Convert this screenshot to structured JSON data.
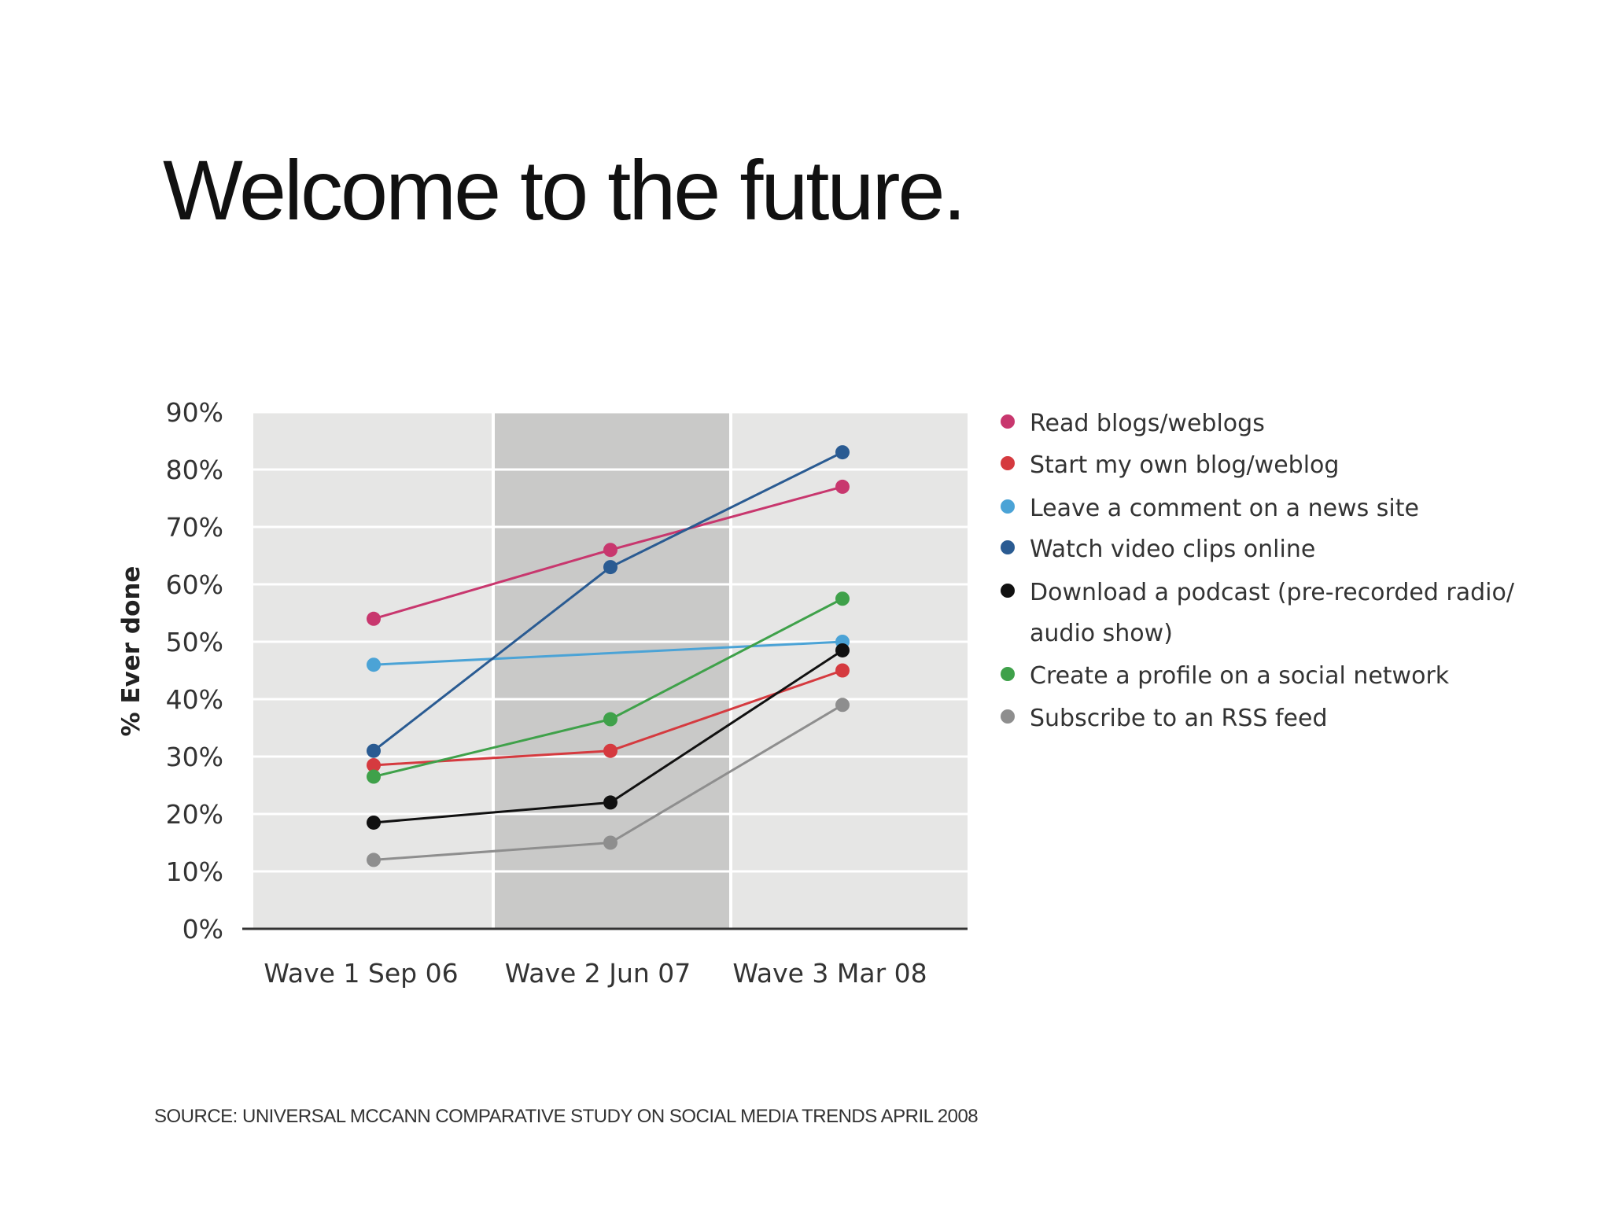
{
  "slide": {
    "title": "Welcome to the future.",
    "source": "SOURCE: UNIVERSAL MCCANN COMPARATIVE STUDY ON SOCIAL MEDIA TRENDS APRIL 2008"
  },
  "chart_data": {
    "type": "line",
    "title": "",
    "xlabel": "",
    "ylabel": "% Ever done",
    "categories": [
      "Wave 1 Sep 06",
      "Wave 2 Jun 07",
      "Wave 3 Mar 08"
    ],
    "ylim": [
      0,
      90
    ],
    "yticks": [
      "0%",
      "10%",
      "20%",
      "30%",
      "40%",
      "50%",
      "60%",
      "70%",
      "80%",
      "90%"
    ],
    "grid": true,
    "legend_position": "right",
    "colors": {
      "panel_light": "#e6e6e5",
      "panel_dark": "#c9c9c8",
      "grid": "#ffffff",
      "axis": "#333333"
    },
    "series": [
      {
        "name": "Read blogs/weblogs",
        "color": "#c8376e",
        "values": [
          54,
          66,
          77
        ]
      },
      {
        "name": "Start my own blog/weblog",
        "color": "#d53a3f",
        "values": [
          28.5,
          31,
          45
        ]
      },
      {
        "name": "Leave a comment on a news site",
        "color": "#4ba3d6",
        "values": [
          46,
          null,
          50
        ]
      },
      {
        "name": "Watch video clips online",
        "color": "#2a5b92",
        "values": [
          31,
          63,
          83
        ]
      },
      {
        "name": "Download a podcast (pre-recorded radio/ audio show)",
        "legend_lines": [
          "Download a podcast (pre-recorded radio/",
          "audio show)"
        ],
        "color": "#111111",
        "values": [
          18.5,
          22,
          48.5
        ]
      },
      {
        "name": "Create a profile on a social network",
        "color": "#3fa14a",
        "values": [
          26.5,
          36.5,
          57.5
        ]
      },
      {
        "name": "Subscribe to an RSS feed",
        "color": "#8e8e8e",
        "values": [
          12,
          15,
          39
        ]
      }
    ]
  }
}
